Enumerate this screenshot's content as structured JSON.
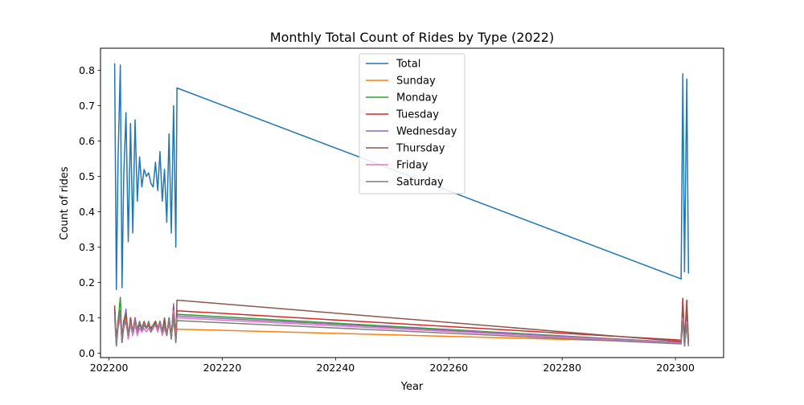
{
  "chart_data": {
    "type": "line",
    "title": "Monthly Total Count of Rides by Type (2022)",
    "xlabel": "Year",
    "ylabel": "Count of rides",
    "xlim": [
      202198.5,
      202308.5
    ],
    "ylim": [
      -0.0125,
      0.8625
    ],
    "xticks": [
      202200,
      202220,
      202240,
      202260,
      202280,
      202300
    ],
    "yticks": [
      0.0,
      0.1,
      0.2,
      0.3,
      0.4,
      0.5,
      0.6,
      0.7,
      0.8
    ],
    "ytick_labels": [
      "0.0",
      "0.1",
      "0.2",
      "0.3",
      "0.4",
      "0.5",
      "0.6",
      "0.7",
      "0.8"
    ],
    "grid": false,
    "legend_position": "top-center",
    "x": [
      202201,
      202201.3,
      202201.6,
      202202,
      202202.3,
      202202.6,
      202203,
      202203.4,
      202203.8,
      202204.2,
      202204.6,
      202205,
      202205.4,
      202205.8,
      202206.2,
      202206.6,
      202207,
      202207.4,
      202207.8,
      202208.2,
      202208.6,
      202209,
      202209.4,
      202209.8,
      202210.2,
      202210.6,
      202211,
      202211.4,
      202211.8,
      202212,
      202301,
      202301.3,
      202301.6,
      202302,
      202302.3
    ],
    "series": [
      {
        "name": "Total",
        "color": "#1f77b4",
        "values": [
          0.82,
          0.18,
          0.55,
          0.815,
          0.185,
          0.5,
          0.68,
          0.315,
          0.65,
          0.34,
          0.66,
          0.43,
          0.555,
          0.47,
          0.52,
          0.5,
          0.51,
          0.48,
          0.47,
          0.54,
          0.46,
          0.57,
          0.43,
          0.52,
          0.37,
          0.62,
          0.34,
          0.7,
          0.3,
          0.75,
          0.21,
          0.79,
          0.23,
          0.775,
          0.225
        ]
      },
      {
        "name": "Sunday",
        "color": "#ff7f0e",
        "values": [
          0.12,
          0.03,
          0.08,
          0.1,
          0.03,
          0.07,
          0.1,
          0.05,
          0.08,
          0.06,
          0.09,
          0.06,
          0.08,
          0.07,
          0.08,
          0.07,
          0.09,
          0.07,
          0.08,
          0.09,
          0.07,
          0.08,
          0.07,
          0.08,
          0.06,
          0.08,
          0.05,
          0.09,
          0.04,
          0.068,
          0.03,
          0.12,
          0.03,
          0.1,
          0.03
        ]
      },
      {
        "name": "Monday",
        "color": "#2ca02c",
        "values": [
          0.13,
          0.02,
          0.09,
          0.158,
          0.03,
          0.09,
          0.12,
          0.04,
          0.1,
          0.05,
          0.1,
          0.05,
          0.09,
          0.06,
          0.08,
          0.07,
          0.08,
          0.06,
          0.07,
          0.09,
          0.06,
          0.09,
          0.06,
          0.08,
          0.05,
          0.1,
          0.04,
          0.12,
          0.03,
          0.11,
          0.03,
          0.13,
          0.02,
          0.12,
          0.02
        ]
      },
      {
        "name": "Tuesday",
        "color": "#d62728",
        "values": [
          0.125,
          0.03,
          0.09,
          0.12,
          0.03,
          0.09,
          0.11,
          0.05,
          0.1,
          0.06,
          0.1,
          0.06,
          0.09,
          0.07,
          0.08,
          0.07,
          0.08,
          0.07,
          0.08,
          0.09,
          0.07,
          0.09,
          0.06,
          0.09,
          0.05,
          0.1,
          0.05,
          0.13,
          0.04,
          0.12,
          0.037,
          0.155,
          0.03,
          0.15,
          0.03
        ]
      },
      {
        "name": "Wednesday",
        "color": "#9467bd",
        "values": [
          0.115,
          0.025,
          0.08,
          0.11,
          0.03,
          0.08,
          0.125,
          0.04,
          0.09,
          0.05,
          0.1,
          0.06,
          0.09,
          0.06,
          0.08,
          0.07,
          0.08,
          0.06,
          0.07,
          0.08,
          0.06,
          0.08,
          0.06,
          0.08,
          0.05,
          0.09,
          0.04,
          0.14,
          0.03,
          0.105,
          0.03,
          0.12,
          0.02,
          0.11,
          0.02
        ]
      },
      {
        "name": "Thursday",
        "color": "#8c564b",
        "values": [
          0.135,
          0.03,
          0.08,
          0.12,
          0.04,
          0.09,
          0.11,
          0.05,
          0.09,
          0.06,
          0.09,
          0.07,
          0.08,
          0.07,
          0.09,
          0.07,
          0.08,
          0.06,
          0.08,
          0.09,
          0.07,
          0.09,
          0.06,
          0.1,
          0.05,
          0.1,
          0.05,
          0.13,
          0.04,
          0.15,
          0.033,
          0.14,
          0.03,
          0.14,
          0.03
        ]
      },
      {
        "name": "Friday",
        "color": "#e377c2",
        "values": [
          0.1,
          0.02,
          0.07,
          0.1,
          0.03,
          0.07,
          0.09,
          0.04,
          0.08,
          0.05,
          0.08,
          0.05,
          0.07,
          0.06,
          0.07,
          0.06,
          0.07,
          0.06,
          0.07,
          0.08,
          0.06,
          0.08,
          0.05,
          0.07,
          0.05,
          0.09,
          0.04,
          0.12,
          0.03,
          0.1,
          0.028,
          0.1,
          0.02,
          0.09,
          0.02
        ]
      },
      {
        "name": "Saturday",
        "color": "#7f7f7f",
        "values": [
          0.11,
          0.02,
          0.08,
          0.12,
          0.03,
          0.08,
          0.09,
          0.05,
          0.09,
          0.06,
          0.09,
          0.07,
          0.09,
          0.07,
          0.08,
          0.07,
          0.09,
          0.06,
          0.08,
          0.08,
          0.07,
          0.09,
          0.06,
          0.08,
          0.05,
          0.1,
          0.04,
          0.11,
          0.03,
          0.092,
          0.026,
          0.09,
          0.02,
          0.08,
          0.02
        ]
      }
    ]
  }
}
